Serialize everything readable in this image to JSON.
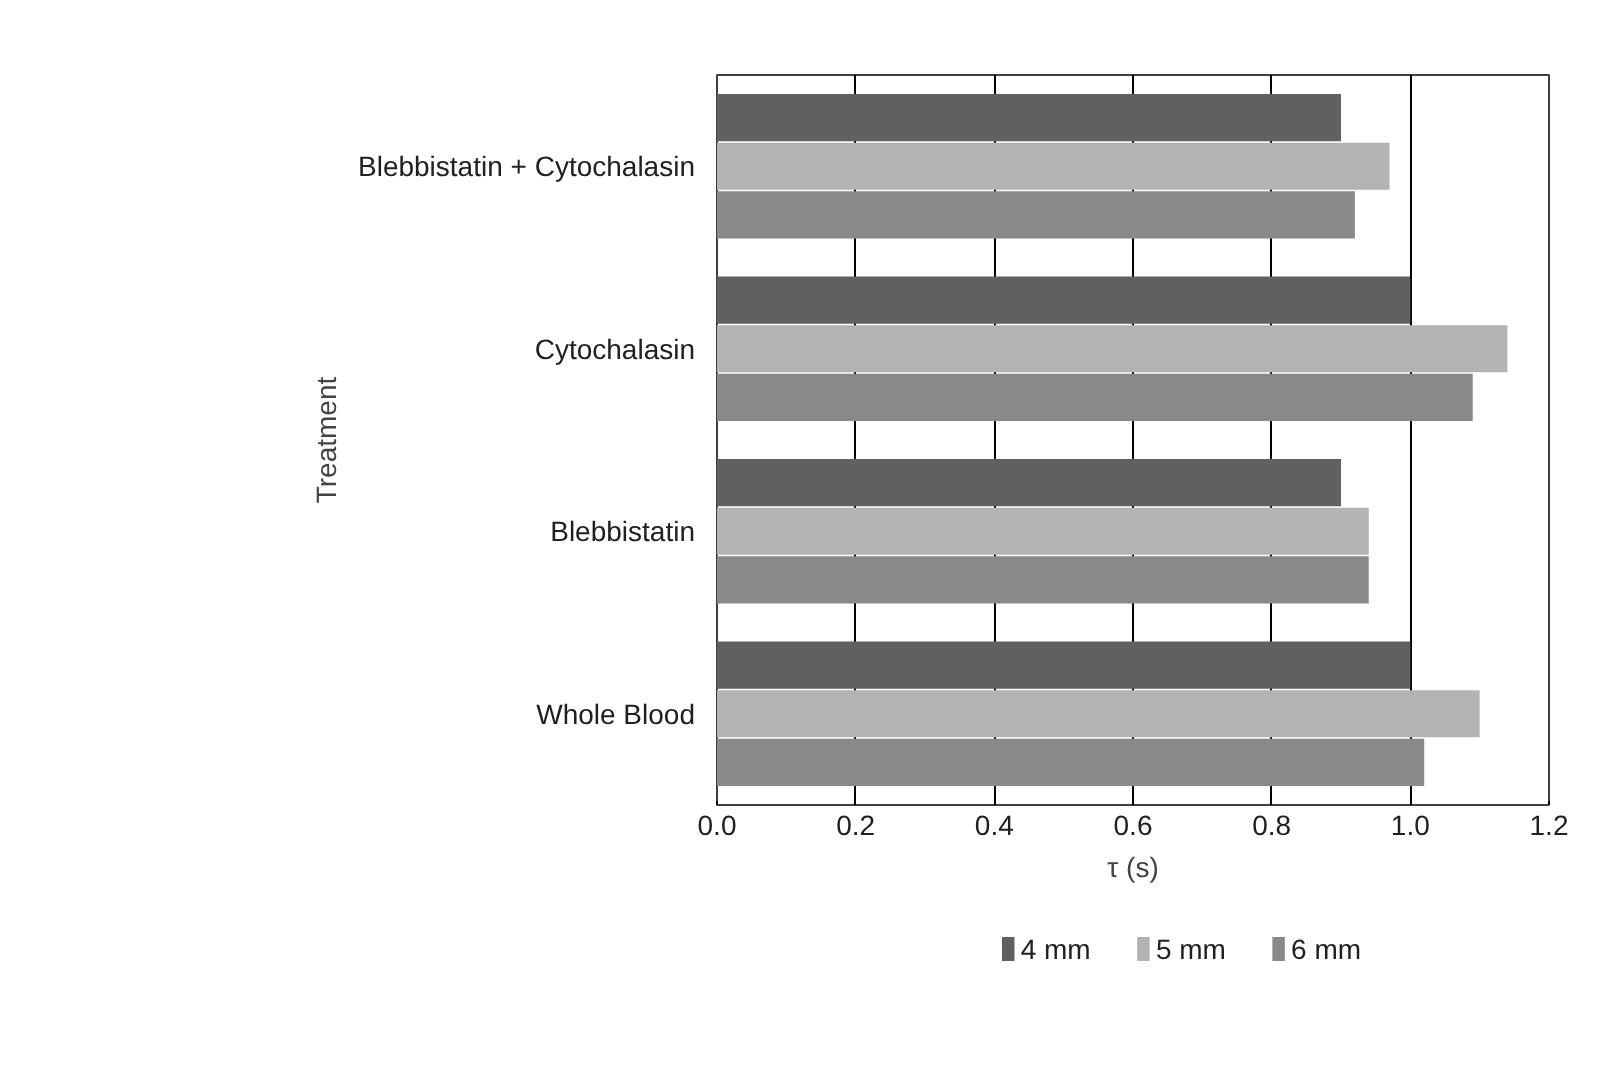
{
  "chart_data": {
    "type": "bar",
    "orientation": "horizontal",
    "xlabel": "τ (s)",
    "ylabel": "Treatment",
    "categories": [
      "Blebbistatin + Cytochalasin",
      "Cytochalasin",
      "Blebbistatin",
      "Whole Blood"
    ],
    "series": [
      {
        "name": "4 mm",
        "color": "#606060",
        "values": [
          0.9,
          1.0,
          0.9,
          1.0
        ]
      },
      {
        "name": "5 mm",
        "color": "#b3b3b3",
        "values": [
          0.97,
          1.14,
          0.94,
          1.1
        ]
      },
      {
        "name": "6 mm",
        "color": "#898989",
        "values": [
          0.92,
          1.09,
          0.94,
          1.02
        ]
      }
    ],
    "xlim": [
      0,
      1.2
    ],
    "xticks": [
      {
        "value": 0,
        "label": "0.0"
      },
      {
        "value": 0.2,
        "label": "0.2"
      },
      {
        "value": 0.4,
        "label": "0.4"
      },
      {
        "value": 0.6,
        "label": "0.6"
      },
      {
        "value": 0.8,
        "label": "0.8"
      },
      {
        "value": 1.0,
        "label": "1.0"
      },
      {
        "value": 1.2,
        "label": "1.2"
      }
    ],
    "grid": "x",
    "legend": "bottom"
  }
}
